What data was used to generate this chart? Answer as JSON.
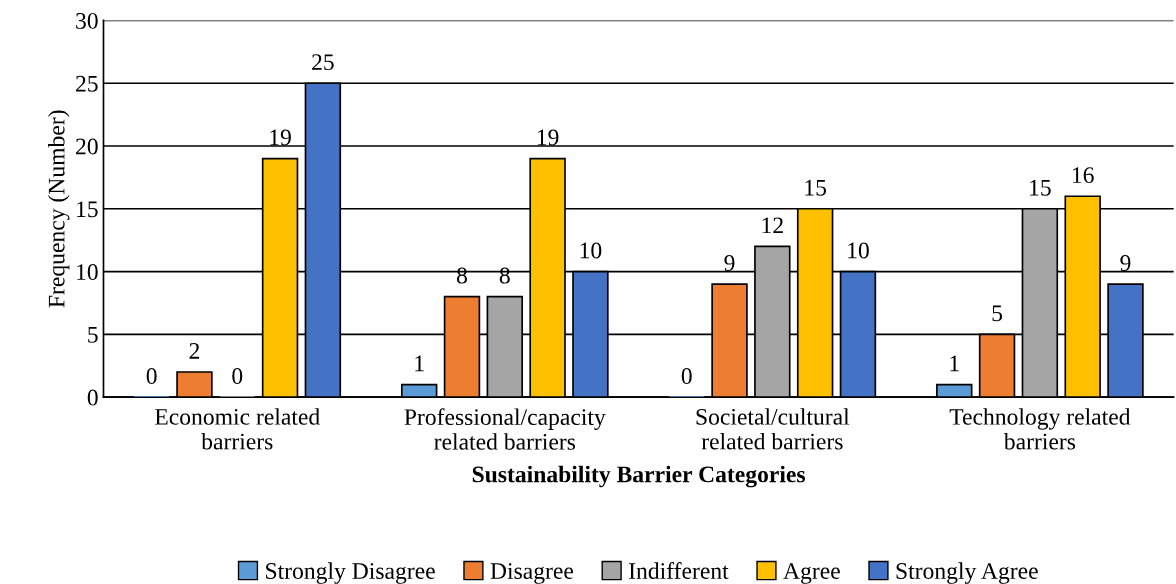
{
  "chart_data": {
    "type": "bar",
    "xlabel": "Sustainability Barrier Categories",
    "ylabel": "Frequency (Number)",
    "categories": [
      "Economic related\nbarriers",
      "Professional/capacity\nrelated barriers",
      "Societal/cultural\nrelated barriers",
      "Technology related\nbarriers"
    ],
    "series": [
      {
        "name": "Strongly Disagree",
        "color": "#5b9bd5",
        "values": [
          0,
          1,
          0,
          1
        ]
      },
      {
        "name": "Disagree",
        "color": "#ed7d31",
        "values": [
          2,
          8,
          9,
          5
        ]
      },
      {
        "name": "Indifferent",
        "color": "#a5a5a5",
        "values": [
          0,
          8,
          12,
          15
        ]
      },
      {
        "name": "Agree",
        "color": "#ffc000",
        "values": [
          19,
          19,
          15,
          16
        ]
      },
      {
        "name": "Strongly Agree",
        "color": "#4472c4",
        "values": [
          25,
          10,
          10,
          9
        ]
      }
    ],
    "ylim": [
      0,
      30
    ],
    "yticks": [
      0,
      5,
      10,
      15,
      20,
      25,
      30
    ],
    "grid": "y",
    "legend": "bottom",
    "data_labels": true
  }
}
